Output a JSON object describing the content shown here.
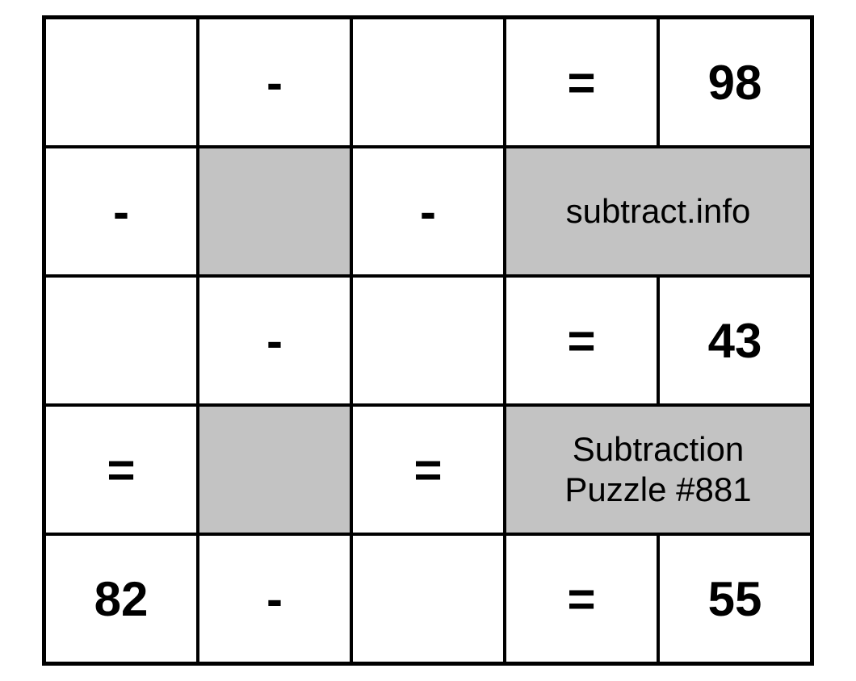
{
  "puzzle": {
    "type": "grid-puzzle",
    "title": "Subtraction Puzzle #881",
    "source": "subtract.info",
    "grid": {
      "rows": 5,
      "cols": 5,
      "cell_bg": "#ffffff",
      "shaded_bg": "#c3c3c3",
      "border_color": "#000000",
      "number_fontsize": 60,
      "text_fontsize": 42
    },
    "cells": {
      "r0c0": "",
      "r0c1": "-",
      "r0c2": "",
      "r0c3": "=",
      "r0c4": "98",
      "r1c0": "-",
      "r1c1": "",
      "r1c2": "-",
      "r1_merged": "subtract.info",
      "r2c0": "",
      "r2c1": "-",
      "r2c2": "",
      "r2c3": "=",
      "r2c4": "43",
      "r3c0": "=",
      "r3c1": "",
      "r3c2": "=",
      "r3_merged": "Subtraction\nPuzzle #881",
      "r4c0": "82",
      "r4c1": "-",
      "r4c2": "",
      "r4c3": "=",
      "r4c4": "55"
    }
  }
}
